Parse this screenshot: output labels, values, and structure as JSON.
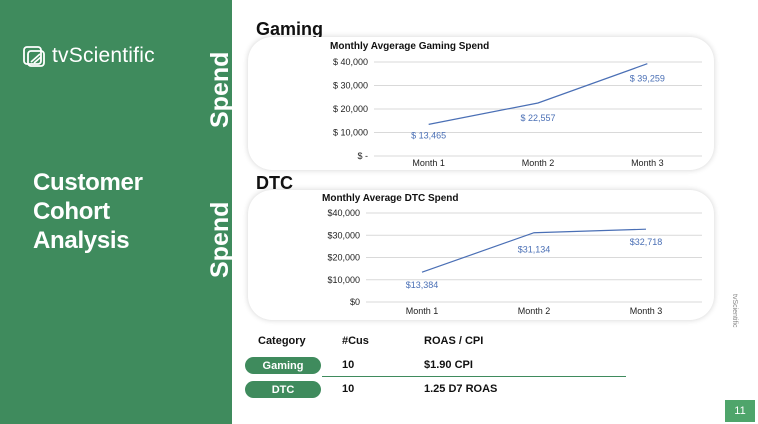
{
  "brand": {
    "logo_text": "tvScientific",
    "side_text": "tvScientific"
  },
  "slide": {
    "title_lines": [
      "Customer",
      "Cohort",
      "Analysis"
    ],
    "page_number": "11",
    "vertical_label_top": "Spend",
    "vertical_label_bottom": "Spend"
  },
  "sections": {
    "gaming_heading": "Gaming",
    "dtc_heading": "DTC"
  },
  "colors": {
    "brand_green": "#3f8b5d",
    "line_blue": "#4a6fb5",
    "page_badge": "#4fa56b"
  },
  "chart_data": [
    {
      "type": "line",
      "title": "Monthly Avgerage Gaming Spend",
      "categories": [
        "Month 1",
        "Month 2",
        "Month 3"
      ],
      "values": [
        13465,
        22557,
        39259
      ],
      "data_labels": [
        "$ 13,465",
        "$ 22,557",
        "$ 39,259"
      ],
      "y_ticks": [
        "$ -",
        "$ 10,000",
        "$ 20,000",
        "$ 30,000",
        "$ 40,000"
      ],
      "ylim": [
        0,
        40000
      ],
      "xlabel": "",
      "ylabel": "",
      "grid": true,
      "legend": "none"
    },
    {
      "type": "line",
      "title": "Monthly Average DTC Spend",
      "categories": [
        "Month 1",
        "Month 2",
        "Month 3"
      ],
      "values": [
        13384,
        31134,
        32718
      ],
      "data_labels": [
        "$13,384",
        "$31,134",
        "$32,718"
      ],
      "y_ticks": [
        "$0",
        "$10,000",
        "$20,000",
        "$30,000",
        "$40,000"
      ],
      "ylim": [
        0,
        40000
      ],
      "xlabel": "",
      "ylabel": "",
      "grid": true,
      "legend": "none"
    }
  ],
  "table": {
    "headers": [
      "Category",
      "#Cus",
      "ROAS / CPI"
    ],
    "rows": [
      {
        "category": "Gaming",
        "customers": "10",
        "metric": "$1.90  CPI"
      },
      {
        "category": "DTC",
        "customers": "10",
        "metric": "1.25 D7 ROAS"
      }
    ]
  }
}
